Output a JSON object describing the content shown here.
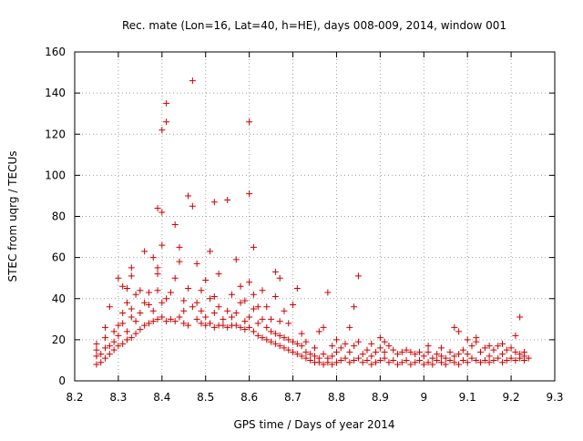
{
  "chart_data": {
    "type": "scatter",
    "title": "Rec. mate (Lon=16, Lat=40, h=HE), days 008-009, 2014, window 001",
    "xlabel": "GPS time / Days of year 2014",
    "ylabel": "STEC from uqrg / TECUs",
    "xlim": [
      8.2,
      9.3
    ],
    "ylim": [
      0,
      160
    ],
    "xticks": [
      "8.2",
      "8.3",
      "8.4",
      "8.5",
      "8.6",
      "8.7",
      "8.8",
      "8.9",
      "9",
      "9.1",
      "9.2",
      "9.3"
    ],
    "yticks": [
      "0",
      "20",
      "40",
      "60",
      "80",
      "100",
      "120",
      "140",
      "160"
    ],
    "grid": true,
    "marker": "+",
    "color": "#cc0000",
    "series": [
      {
        "name": "STEC",
        "points": [
          [
            8.25,
            8
          ],
          [
            8.25,
            12
          ],
          [
            8.25,
            15
          ],
          [
            8.25,
            18
          ],
          [
            8.26,
            9
          ],
          [
            8.26,
            13
          ],
          [
            8.27,
            11
          ],
          [
            8.27,
            16
          ],
          [
            8.27,
            21
          ],
          [
            8.27,
            26
          ],
          [
            8.28,
            13
          ],
          [
            8.28,
            17
          ],
          [
            8.28,
            36
          ],
          [
            8.29,
            15
          ],
          [
            8.29,
            19
          ],
          [
            8.29,
            24
          ],
          [
            8.3,
            17
          ],
          [
            8.3,
            22
          ],
          [
            8.3,
            27
          ],
          [
            8.3,
            50
          ],
          [
            8.31,
            18
          ],
          [
            8.31,
            28
          ],
          [
            8.31,
            33
          ],
          [
            8.31,
            46
          ],
          [
            8.32,
            20
          ],
          [
            8.32,
            24
          ],
          [
            8.32,
            38
          ],
          [
            8.32,
            45
          ],
          [
            8.33,
            21
          ],
          [
            8.33,
            31
          ],
          [
            8.33,
            35
          ],
          [
            8.33,
            51
          ],
          [
            8.33,
            55
          ],
          [
            8.34,
            23
          ],
          [
            8.34,
            29
          ],
          [
            8.34,
            42
          ],
          [
            8.35,
            25
          ],
          [
            8.35,
            33
          ],
          [
            8.35,
            44
          ],
          [
            8.36,
            27
          ],
          [
            8.36,
            38
          ],
          [
            8.36,
            63
          ],
          [
            8.37,
            28
          ],
          [
            8.37,
            37
          ],
          [
            8.37,
            43
          ],
          [
            8.38,
            29
          ],
          [
            8.38,
            34
          ],
          [
            8.38,
            60
          ],
          [
            8.39,
            30
          ],
          [
            8.39,
            44
          ],
          [
            8.39,
            52
          ],
          [
            8.39,
            55
          ],
          [
            8.39,
            84
          ],
          [
            8.4,
            31
          ],
          [
            8.4,
            38
          ],
          [
            8.4,
            66
          ],
          [
            8.4,
            82
          ],
          [
            8.4,
            122
          ],
          [
            8.41,
            29
          ],
          [
            8.41,
            40
          ],
          [
            8.41,
            126
          ],
          [
            8.41,
            135
          ],
          [
            8.42,
            30
          ],
          [
            8.42,
            43
          ],
          [
            8.43,
            29
          ],
          [
            8.43,
            50
          ],
          [
            8.43,
            76
          ],
          [
            8.44,
            31
          ],
          [
            8.44,
            58
          ],
          [
            8.44,
            65
          ],
          [
            8.45,
            28
          ],
          [
            8.45,
            34
          ],
          [
            8.45,
            39
          ],
          [
            8.46,
            27
          ],
          [
            8.46,
            45
          ],
          [
            8.46,
            90
          ],
          [
            8.47,
            36
          ],
          [
            8.47,
            85
          ],
          [
            8.47,
            146
          ],
          [
            8.48,
            30
          ],
          [
            8.48,
            38
          ],
          [
            8.48,
            57
          ],
          [
            8.49,
            28
          ],
          [
            8.49,
            34
          ],
          [
            8.49,
            44
          ],
          [
            8.5,
            27
          ],
          [
            8.5,
            31
          ],
          [
            8.5,
            49
          ],
          [
            8.51,
            28
          ],
          [
            8.51,
            40
          ],
          [
            8.51,
            63
          ],
          [
            8.52,
            26
          ],
          [
            8.52,
            33
          ],
          [
            8.52,
            41
          ],
          [
            8.52,
            87
          ],
          [
            8.53,
            27
          ],
          [
            8.53,
            36
          ],
          [
            8.53,
            52
          ],
          [
            8.54,
            27
          ],
          [
            8.54,
            30
          ],
          [
            8.55,
            26
          ],
          [
            8.55,
            34
          ],
          [
            8.55,
            88
          ],
          [
            8.56,
            27
          ],
          [
            8.56,
            31
          ],
          [
            8.56,
            42
          ],
          [
            8.57,
            27
          ],
          [
            8.57,
            33
          ],
          [
            8.57,
            59
          ],
          [
            8.58,
            26
          ],
          [
            8.58,
            38
          ],
          [
            8.58,
            46
          ],
          [
            8.59,
            25
          ],
          [
            8.59,
            29
          ],
          [
            8.59,
            39
          ],
          [
            8.6,
            26
          ],
          [
            8.6,
            31
          ],
          [
            8.6,
            48
          ],
          [
            8.6,
            91
          ],
          [
            8.6,
            126
          ],
          [
            8.61,
            24
          ],
          [
            8.61,
            35
          ],
          [
            8.61,
            42
          ],
          [
            8.61,
            65
          ],
          [
            8.62,
            22
          ],
          [
            8.62,
            28
          ],
          [
            8.62,
            36
          ],
          [
            8.63,
            21
          ],
          [
            8.63,
            30
          ],
          [
            8.63,
            44
          ],
          [
            8.64,
            20
          ],
          [
            8.64,
            26
          ],
          [
            8.64,
            36
          ],
          [
            8.65,
            19
          ],
          [
            8.65,
            24
          ],
          [
            8.65,
            30
          ],
          [
            8.66,
            18
          ],
          [
            8.66,
            23
          ],
          [
            8.66,
            41
          ],
          [
            8.66,
            53
          ],
          [
            8.67,
            17
          ],
          [
            8.67,
            22
          ],
          [
            8.67,
            29
          ],
          [
            8.67,
            50
          ],
          [
            8.68,
            16
          ],
          [
            8.68,
            21
          ],
          [
            8.68,
            34
          ],
          [
            8.69,
            15
          ],
          [
            8.69,
            20
          ],
          [
            8.69,
            28
          ],
          [
            8.7,
            14
          ],
          [
            8.7,
            19
          ],
          [
            8.7,
            37
          ],
          [
            8.71,
            13
          ],
          [
            8.71,
            18
          ],
          [
            8.71,
            45
          ],
          [
            8.72,
            12
          ],
          [
            8.72,
            17
          ],
          [
            8.72,
            23
          ],
          [
            8.73,
            11
          ],
          [
            8.73,
            14
          ],
          [
            8.73,
            19
          ],
          [
            8.74,
            10
          ],
          [
            8.74,
            13
          ],
          [
            8.75,
            9
          ],
          [
            8.75,
            12
          ],
          [
            8.75,
            16
          ],
          [
            8.76,
            9
          ],
          [
            8.76,
            11
          ],
          [
            8.76,
            24
          ],
          [
            8.77,
            8
          ],
          [
            8.77,
            13
          ],
          [
            8.77,
            26
          ],
          [
            8.78,
            9
          ],
          [
            8.78,
            11
          ],
          [
            8.78,
            43
          ],
          [
            8.79,
            8
          ],
          [
            8.79,
            12
          ],
          [
            8.79,
            17
          ],
          [
            8.8,
            9
          ],
          [
            8.8,
            14
          ],
          [
            8.8,
            20
          ],
          [
            8.81,
            10
          ],
          [
            8.81,
            16
          ],
          [
            8.82,
            11
          ],
          [
            8.82,
            18
          ],
          [
            8.83,
            9
          ],
          [
            8.83,
            14
          ],
          [
            8.83,
            26
          ],
          [
            8.84,
            10
          ],
          [
            8.84,
            17
          ],
          [
            8.84,
            36
          ],
          [
            8.85,
            11
          ],
          [
            8.85,
            19
          ],
          [
            8.85,
            51
          ],
          [
            8.86,
            9
          ],
          [
            8.86,
            13
          ],
          [
            8.87,
            10
          ],
          [
            8.87,
            15
          ],
          [
            8.88,
            8
          ],
          [
            8.88,
            12
          ],
          [
            8.88,
            18
          ],
          [
            8.89,
            9
          ],
          [
            8.89,
            14
          ],
          [
            8.9,
            10
          ],
          [
            8.9,
            16
          ],
          [
            8.9,
            21
          ],
          [
            8.91,
            11
          ],
          [
            8.91,
            14
          ],
          [
            8.91,
            19
          ],
          [
            8.92,
            9
          ],
          [
            8.92,
            17
          ],
          [
            8.93,
            10
          ],
          [
            8.93,
            15
          ],
          [
            8.94,
            8
          ],
          [
            8.94,
            13
          ],
          [
            8.95,
            9
          ],
          [
            8.95,
            14
          ],
          [
            8.96,
            10
          ],
          [
            8.96,
            15
          ],
          [
            8.97,
            8
          ],
          [
            8.97,
            14
          ],
          [
            8.98,
            9
          ],
          [
            8.98,
            13
          ],
          [
            8.99,
            10
          ],
          [
            8.99,
            14
          ],
          [
            9.0,
            8
          ],
          [
            9.0,
            12
          ],
          [
            9.01,
            9
          ],
          [
            9.01,
            14
          ],
          [
            9.01,
            17
          ],
          [
            9.02,
            8
          ],
          [
            9.02,
            11
          ],
          [
            9.03,
            10
          ],
          [
            9.03,
            13
          ],
          [
            9.04,
            9
          ],
          [
            9.04,
            12
          ],
          [
            9.04,
            16
          ],
          [
            9.05,
            8
          ],
          [
            9.05,
            11
          ],
          [
            9.06,
            10
          ],
          [
            9.06,
            14
          ],
          [
            9.07,
            9
          ],
          [
            9.07,
            12
          ],
          [
            9.07,
            26
          ],
          [
            9.08,
            8
          ],
          [
            9.08,
            13
          ],
          [
            9.08,
            24
          ],
          [
            9.09,
            10
          ],
          [
            9.09,
            15
          ],
          [
            9.1,
            9
          ],
          [
            9.1,
            13
          ],
          [
            9.1,
            20
          ],
          [
            9.11,
            11
          ],
          [
            9.11,
            17
          ],
          [
            9.12,
            10
          ],
          [
            9.12,
            19
          ],
          [
            9.12,
            21
          ],
          [
            9.13,
            9
          ],
          [
            9.13,
            14
          ],
          [
            9.14,
            10
          ],
          [
            9.14,
            16
          ],
          [
            9.15,
            9
          ],
          [
            9.15,
            12
          ],
          [
            9.15,
            17
          ],
          [
            9.16,
            10
          ],
          [
            9.16,
            15
          ],
          [
            9.17,
            11
          ],
          [
            9.17,
            17
          ],
          [
            9.18,
            9
          ],
          [
            9.18,
            13
          ],
          [
            9.18,
            18
          ],
          [
            9.19,
            10
          ],
          [
            9.19,
            15
          ],
          [
            9.2,
            11
          ],
          [
            9.2,
            16
          ],
          [
            9.21,
            10
          ],
          [
            9.21,
            14
          ],
          [
            9.21,
            22
          ],
          [
            9.22,
            11
          ],
          [
            9.22,
            13
          ],
          [
            9.22,
            31
          ],
          [
            9.23,
            10
          ],
          [
            9.23,
            12
          ],
          [
            9.23,
            14
          ],
          [
            9.24,
            11
          ]
        ]
      }
    ]
  }
}
